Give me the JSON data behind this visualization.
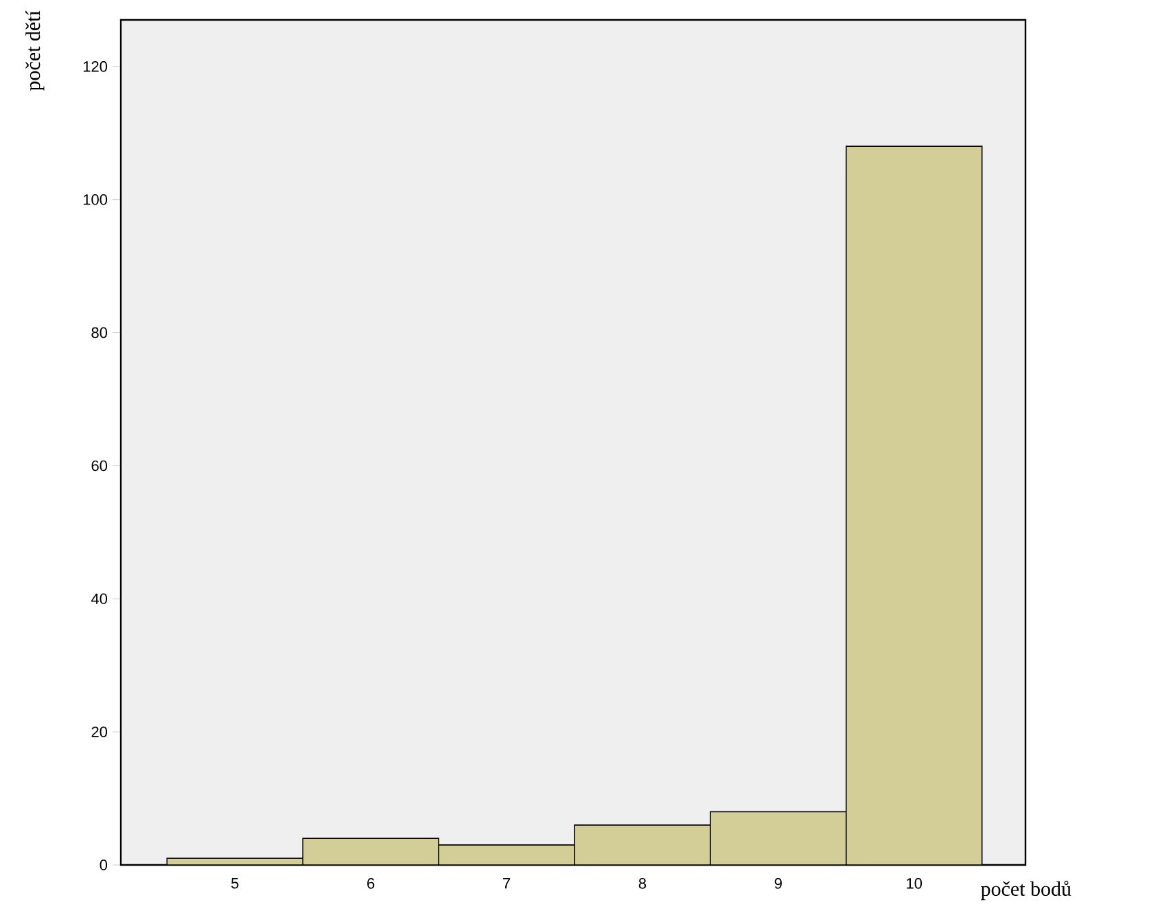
{
  "chart_data": {
    "type": "bar",
    "xlabel": "počet bodů",
    "ylabel": "počet dětí",
    "categories": [
      "5",
      "6",
      "7",
      "8",
      "9",
      "10"
    ],
    "values": [
      1,
      4,
      3,
      6,
      8,
      108
    ],
    "color": "#d3ce97",
    "ylim": [
      0,
      127
    ],
    "yticks": [
      0,
      20,
      40,
      60,
      80,
      100,
      120
    ]
  }
}
